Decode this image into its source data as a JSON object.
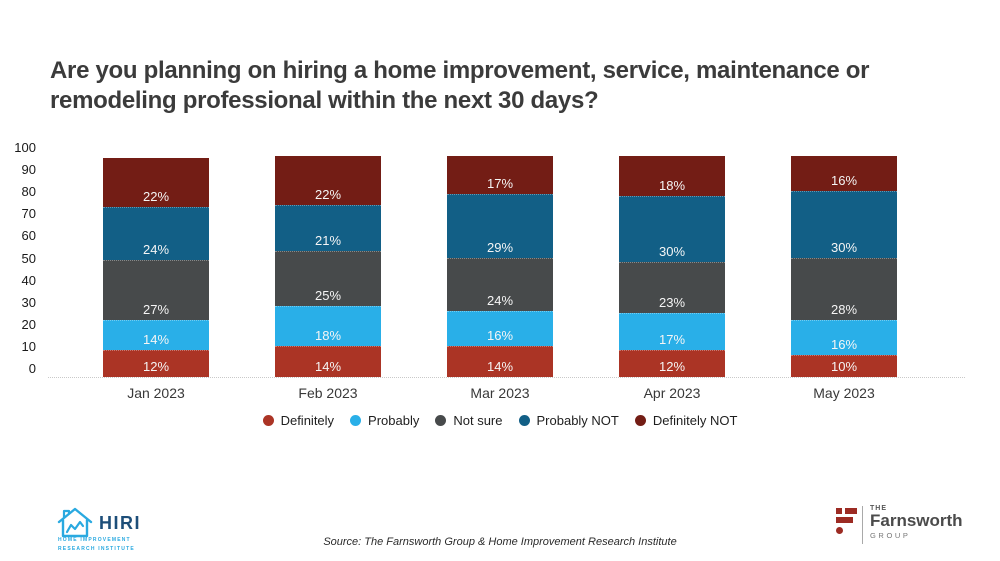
{
  "title": {
    "line1": "Are you planning on hiring a home improvement, service, maintenance or",
    "line2": "remodeling professional within the next 30 days?"
  },
  "chart_data": {
    "type": "bar",
    "stacked": true,
    "title": "Are you planning on hiring a home improvement, service, maintenance or remodeling professional within the next 30 days?",
    "categories": [
      "Jan 2023",
      "Feb 2023",
      "Mar 2023",
      "Apr 2023",
      "May 2023"
    ],
    "series": [
      {
        "name": "Definitely",
        "color": "#ab3425",
        "values": [
          12,
          14,
          14,
          12,
          10
        ]
      },
      {
        "name": "Probably",
        "color": "#29afe8",
        "values": [
          14,
          18,
          16,
          17,
          16
        ]
      },
      {
        "name": "Not sure",
        "color": "#474a4b",
        "values": [
          27,
          25,
          24,
          23,
          28
        ]
      },
      {
        "name": "Probably NOT",
        "color": "#125f86",
        "values": [
          24,
          21,
          29,
          30,
          30
        ]
      },
      {
        "name": "Definitely NOT",
        "color": "#731d15",
        "values": [
          22,
          22,
          17,
          18,
          16
        ]
      }
    ],
    "value_suffix": "%",
    "ylim": [
      0,
      100
    ],
    "ytick_step": 10,
    "grid": false,
    "legend_position": "bottom"
  },
  "footer": {
    "source": "Source: The Farnsworth Group & Home Improvement Research Institute",
    "hiri": {
      "name": "HIRI",
      "tagline1": "HOME IMPROVEMENT",
      "tagline2": "RESEARCH INSTITUTE"
    },
    "farnsworth": {
      "the": "THE",
      "name": "Farnsworth",
      "group": "GROUP"
    }
  }
}
